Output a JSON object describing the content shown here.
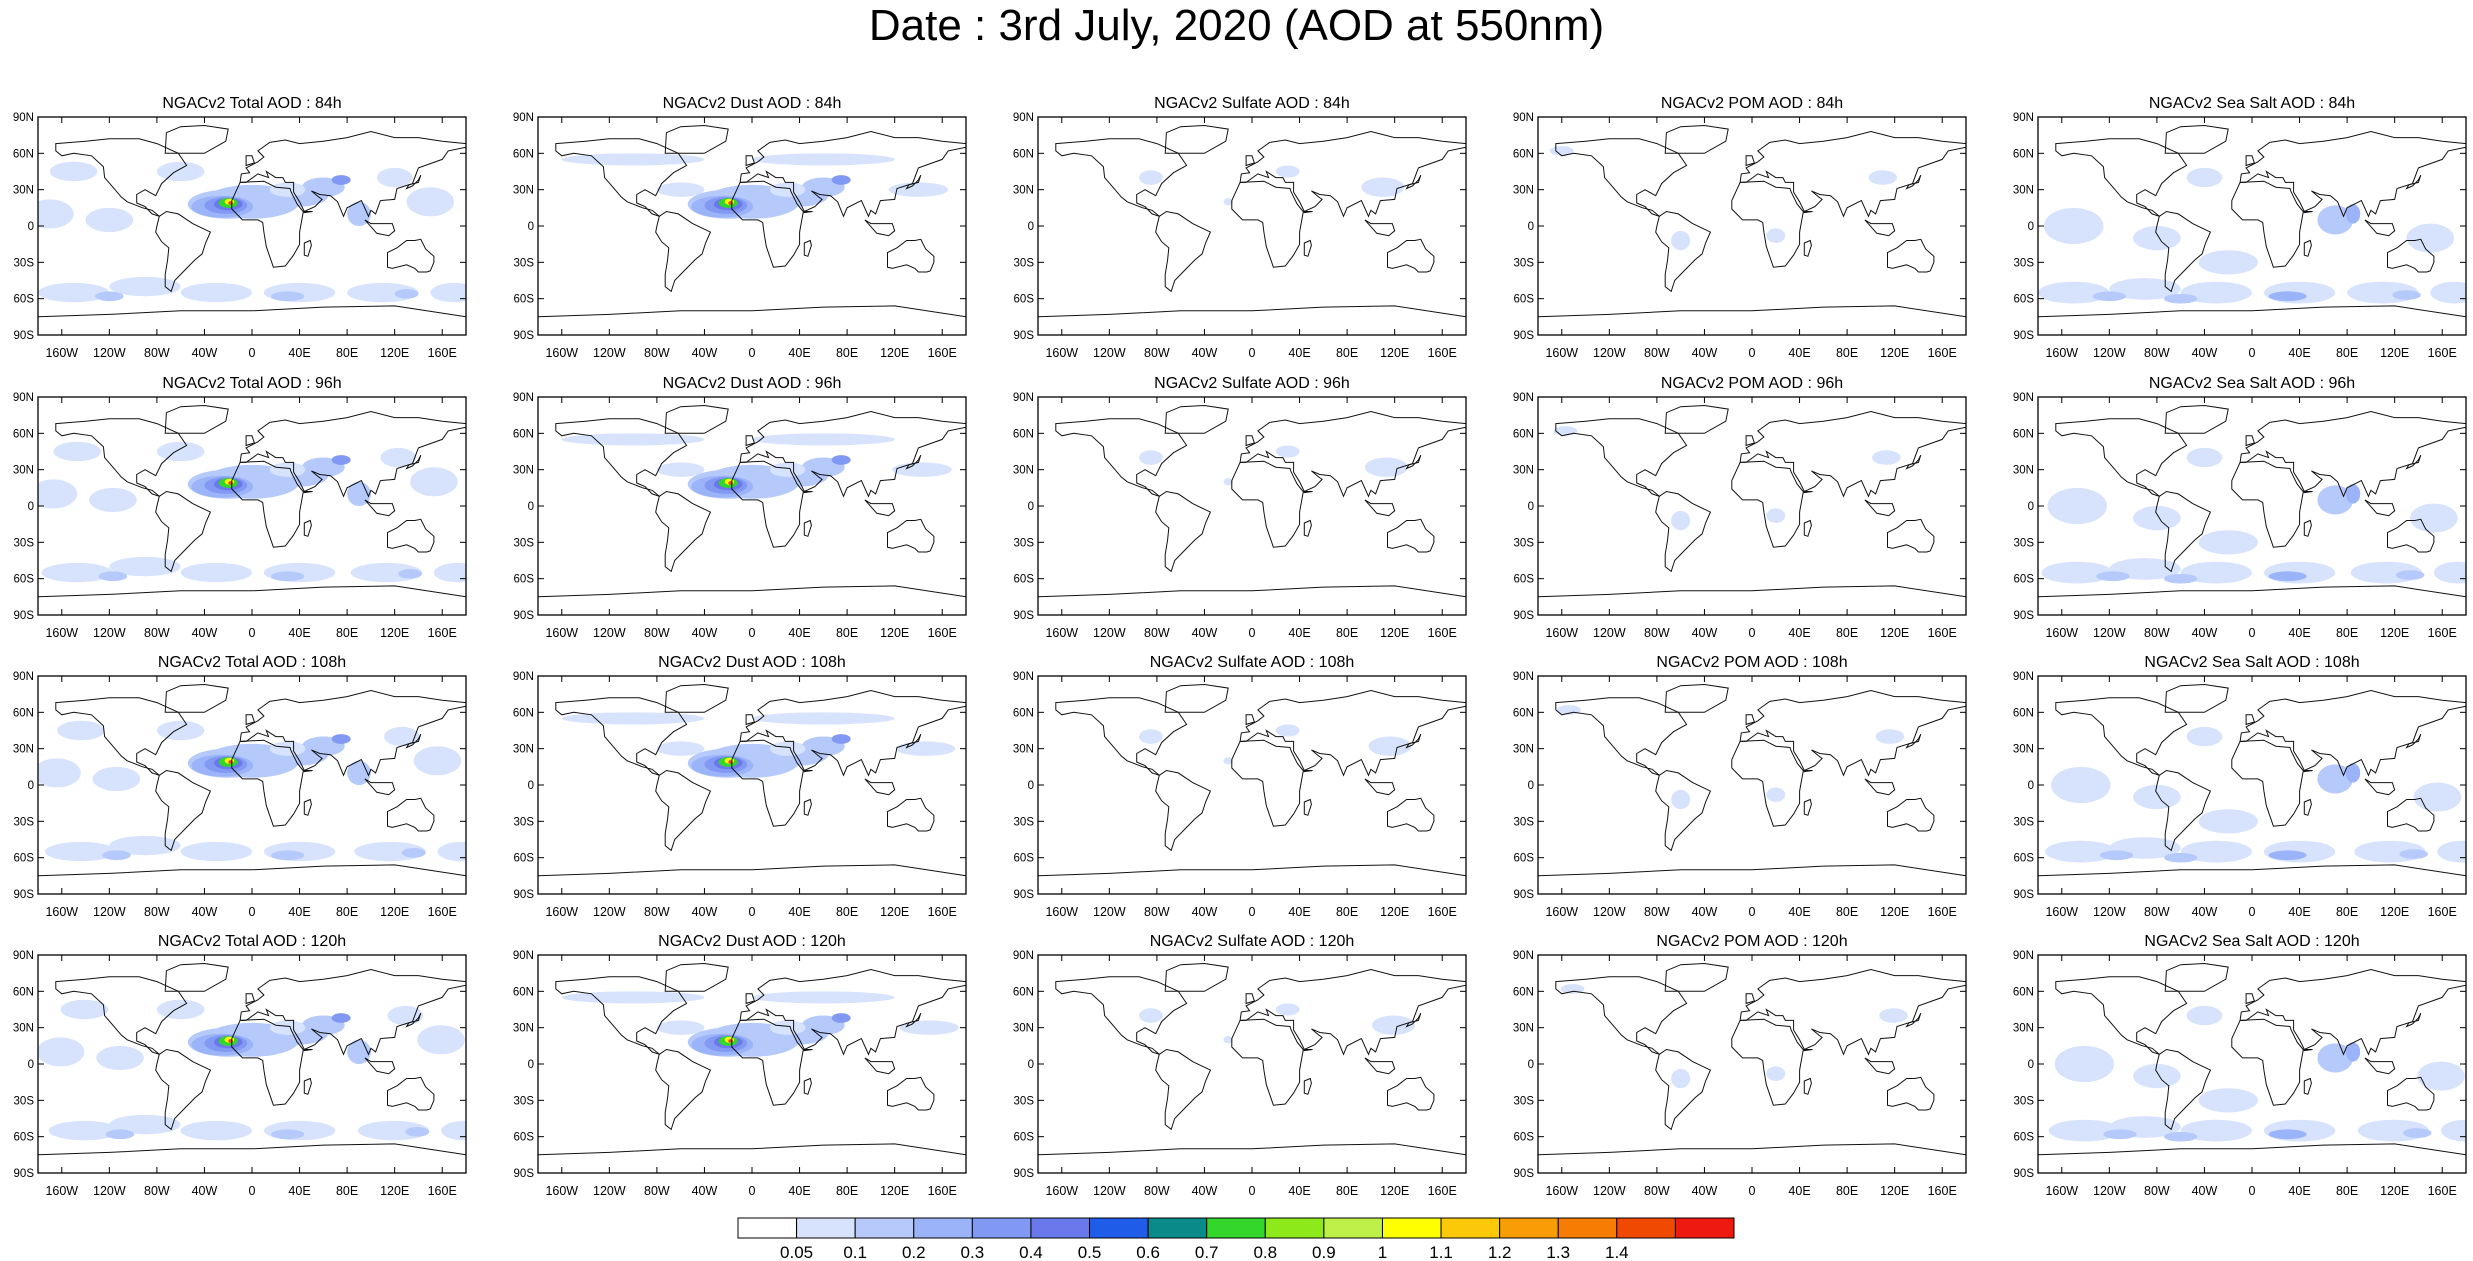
{
  "title": "Date : 3rd July, 2020 (AOD at 550nm)",
  "lat_ticks": [
    "90N",
    "60N",
    "30N",
    "0",
    "30S",
    "60S",
    "90S"
  ],
  "lon_ticks": [
    "160W",
    "120W",
    "80W",
    "40W",
    "0",
    "40E",
    "80E",
    "120E",
    "160E"
  ],
  "rows": [
    {
      "lead": "84h",
      "titles": [
        "NGACv2 Total AOD : 84h",
        "NGACv2 Dust AOD : 84h",
        "NGACv2 Sulfate AOD : 84h",
        "NGACv2 POM AOD : 84h",
        "NGACv2 Sea Salt AOD : 84h"
      ]
    },
    {
      "lead": "96h",
      "titles": [
        "NGACv2 Total AOD : 96h",
        "NGACv2 Dust AOD : 96h",
        "NGACv2 Sulfate AOD : 96h",
        "NGACv2 POM AOD : 96h",
        "NGACv2 Sea Salt AOD : 96h"
      ]
    },
    {
      "lead": "108h",
      "titles": [
        "NGACv2 Total AOD : 108h",
        "NGACv2 Dust AOD : 108h",
        "NGACv2 Sulfate AOD : 108h",
        "NGACv2 POM AOD : 108h",
        "NGACv2 Sea Salt AOD : 108h"
      ]
    },
    {
      "lead": "120h",
      "titles": [
        "NGACv2 Total AOD : 120h",
        "NGACv2 Dust AOD : 120h",
        "NGACv2 Sulfate AOD : 120h",
        "NGACv2 POM AOD : 120h",
        "NGACv2 Sea Salt  AOD : 120h"
      ]
    }
  ],
  "columns": [
    "total",
    "dust",
    "sulfate",
    "pom",
    "seasalt"
  ],
  "colorbar": {
    "colors": [
      "#ffffff",
      "#d7e3fd",
      "#b5c9fb",
      "#9bb3f8",
      "#8299f4",
      "#6a78ec",
      "#1f5de8",
      "#0b8a8a",
      "#33d62a",
      "#8de91a",
      "#bff04a",
      "#ffff00",
      "#fcc80a",
      "#f99d06",
      "#f67c03",
      "#f04a02",
      "#ee1a10"
    ],
    "labels": [
      "0.05",
      "0.1",
      "0.2",
      "0.3",
      "0.4",
      "0.5",
      "0.6",
      "0.7",
      "0.8",
      "0.9",
      "1",
      "1.1",
      "1.2",
      "1.3",
      "1.4"
    ]
  }
}
